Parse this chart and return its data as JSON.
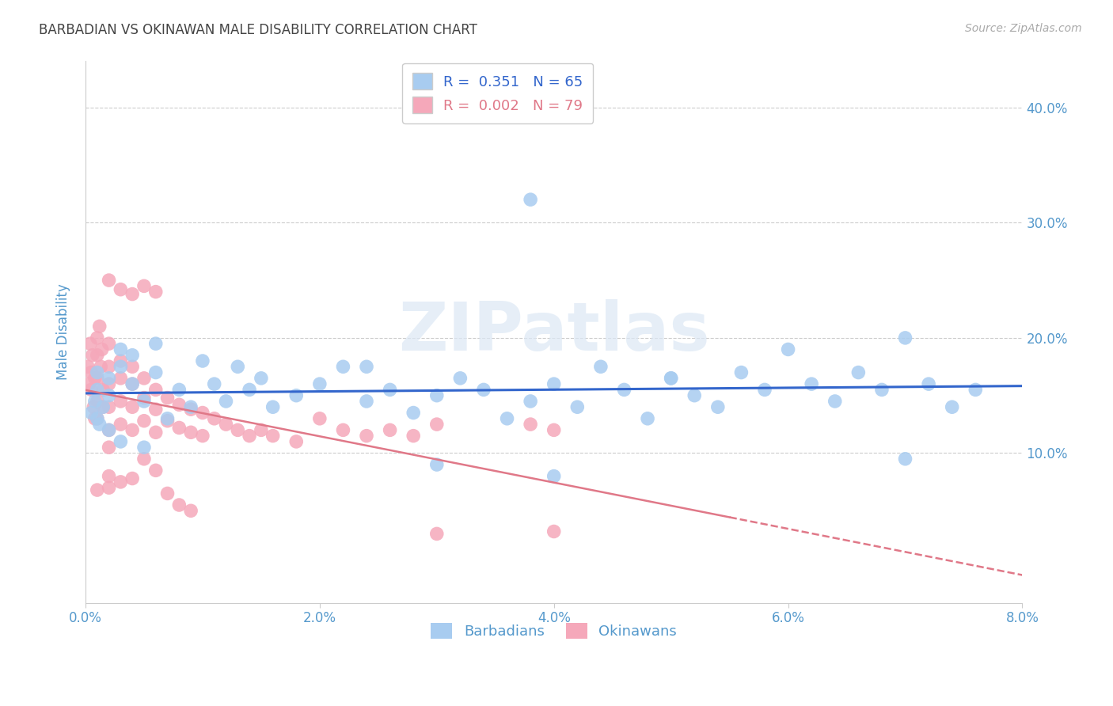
{
  "title": "BARBADIAN VS OKINAWAN MALE DISABILITY CORRELATION CHART",
  "source": "Source: ZipAtlas.com",
  "ylabel": "Male Disability",
  "xlim": [
    0.0,
    0.08
  ],
  "ylim": [
    -0.03,
    0.44
  ],
  "xticks": [
    0.0,
    0.02,
    0.04,
    0.06,
    0.08
  ],
  "yticks": [
    0.1,
    0.2,
    0.3,
    0.4
  ],
  "barbadian_R": 0.351,
  "barbadian_N": 65,
  "okinawan_R": 0.002,
  "okinawan_N": 79,
  "barbadian_color": "#A8CCF0",
  "okinawan_color": "#F5A8BA",
  "barbadian_line_color": "#3366CC",
  "okinawan_line_color": "#E07888",
  "background_color": "#FFFFFF",
  "grid_color": "#CCCCCC",
  "title_color": "#444444",
  "tick_color": "#5599CC",
  "watermark_color": "#DCE8F5",
  "barbadian_x": [
    0.0005,
    0.0008,
    0.001,
    0.001,
    0.001,
    0.0012,
    0.0015,
    0.002,
    0.002,
    0.002,
    0.003,
    0.003,
    0.003,
    0.004,
    0.004,
    0.005,
    0.005,
    0.006,
    0.006,
    0.007,
    0.008,
    0.009,
    0.01,
    0.011,
    0.012,
    0.013,
    0.014,
    0.015,
    0.016,
    0.018,
    0.02,
    0.022,
    0.024,
    0.026,
    0.028,
    0.03,
    0.032,
    0.034,
    0.036,
    0.038,
    0.04,
    0.042,
    0.044,
    0.046,
    0.048,
    0.05,
    0.052,
    0.054,
    0.056,
    0.058,
    0.06,
    0.062,
    0.064,
    0.066,
    0.068,
    0.07,
    0.072,
    0.074,
    0.076,
    0.07,
    0.04,
    0.03,
    0.05,
    0.024,
    0.038
  ],
  "barbadian_y": [
    0.135,
    0.145,
    0.13,
    0.155,
    0.17,
    0.125,
    0.14,
    0.12,
    0.15,
    0.165,
    0.19,
    0.11,
    0.175,
    0.16,
    0.185,
    0.145,
    0.105,
    0.17,
    0.195,
    0.13,
    0.155,
    0.14,
    0.18,
    0.16,
    0.145,
    0.175,
    0.155,
    0.165,
    0.14,
    0.15,
    0.16,
    0.175,
    0.145,
    0.155,
    0.135,
    0.15,
    0.165,
    0.155,
    0.13,
    0.145,
    0.16,
    0.14,
    0.175,
    0.155,
    0.13,
    0.165,
    0.15,
    0.14,
    0.17,
    0.155,
    0.19,
    0.16,
    0.145,
    0.17,
    0.155,
    0.2,
    0.16,
    0.14,
    0.155,
    0.095,
    0.08,
    0.09,
    0.165,
    0.175,
    0.32
  ],
  "okinawan_x": [
    0.0002,
    0.0003,
    0.0004,
    0.0005,
    0.0005,
    0.0006,
    0.0007,
    0.0008,
    0.0008,
    0.001,
    0.001,
    0.001,
    0.001,
    0.001,
    0.0012,
    0.0013,
    0.0014,
    0.0015,
    0.0015,
    0.002,
    0.002,
    0.002,
    0.002,
    0.002,
    0.002,
    0.003,
    0.003,
    0.003,
    0.003,
    0.004,
    0.004,
    0.004,
    0.004,
    0.005,
    0.005,
    0.005,
    0.006,
    0.006,
    0.006,
    0.007,
    0.007,
    0.008,
    0.008,
    0.009,
    0.009,
    0.01,
    0.01,
    0.011,
    0.012,
    0.013,
    0.014,
    0.015,
    0.016,
    0.018,
    0.02,
    0.022,
    0.024,
    0.026,
    0.028,
    0.03,
    0.002,
    0.003,
    0.004,
    0.005,
    0.006,
    0.002,
    0.003,
    0.004,
    0.038,
    0.04,
    0.001,
    0.002,
    0.03,
    0.04,
    0.005,
    0.006,
    0.007,
    0.008,
    0.009
  ],
  "okinawan_y": [
    0.175,
    0.16,
    0.195,
    0.17,
    0.155,
    0.185,
    0.14,
    0.165,
    0.13,
    0.2,
    0.185,
    0.165,
    0.145,
    0.13,
    0.21,
    0.175,
    0.19,
    0.155,
    0.14,
    0.195,
    0.175,
    0.16,
    0.14,
    0.12,
    0.105,
    0.18,
    0.165,
    0.145,
    0.125,
    0.175,
    0.16,
    0.14,
    0.12,
    0.165,
    0.148,
    0.128,
    0.155,
    0.138,
    0.118,
    0.148,
    0.128,
    0.142,
    0.122,
    0.138,
    0.118,
    0.135,
    0.115,
    0.13,
    0.125,
    0.12,
    0.115,
    0.12,
    0.115,
    0.11,
    0.13,
    0.12,
    0.115,
    0.12,
    0.115,
    0.125,
    0.25,
    0.242,
    0.238,
    0.245,
    0.24,
    0.08,
    0.075,
    0.078,
    0.125,
    0.12,
    0.068,
    0.07,
    0.03,
    0.032,
    0.095,
    0.085,
    0.065,
    0.055,
    0.05
  ]
}
